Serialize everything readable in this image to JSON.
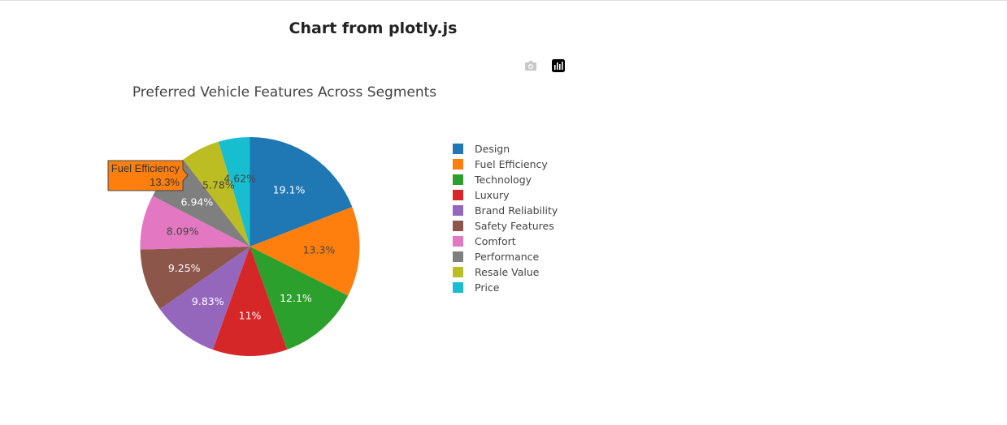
{
  "page": {
    "heading": "Chart from plotly.js"
  },
  "modebar": {
    "camera_icon": "camera-icon",
    "logo_icon": "plotly-logo-icon"
  },
  "chart_data": {
    "type": "pie",
    "title": "Preferred Vehicle Features Across Segments",
    "labels": [
      "Design",
      "Fuel Efficiency",
      "Technology",
      "Luxury",
      "Brand Reliability",
      "Safety Features",
      "Comfort",
      "Performance",
      "Resale Value",
      "Price"
    ],
    "values": [
      19.1,
      13.3,
      12.1,
      11,
      9.83,
      9.25,
      8.09,
      6.94,
      5.78,
      4.62
    ],
    "text_labels": [
      "19.1%",
      "13.3%",
      "12.1%",
      "11%",
      "9.83%",
      "9.25%",
      "8.09%",
      "6.94%",
      "5.78%",
      "4.62%"
    ],
    "colors": [
      "#1f77b4",
      "#ff7f0e",
      "#2ca02c",
      "#d62728",
      "#9467bd",
      "#8c564b",
      "#e377c2",
      "#7f7f7f",
      "#bcbd22",
      "#17becf"
    ],
    "label_colors": [
      "#ffffff",
      "#444444",
      "#ffffff",
      "#ffffff",
      "#ffffff",
      "#ffffff",
      "#444444",
      "#ffffff",
      "#444444",
      "#444444"
    ],
    "legend_position": "right",
    "hover": {
      "label": "Fuel Efficiency",
      "value": "13.3%",
      "color": "#ff7f0e"
    }
  }
}
